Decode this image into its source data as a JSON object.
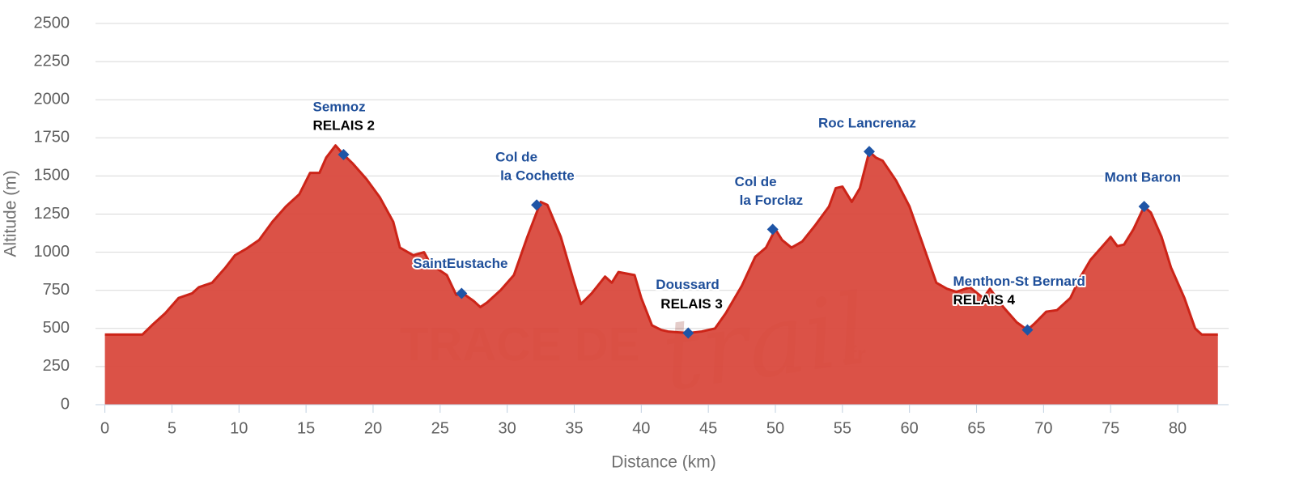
{
  "chart_data": {
    "type": "area",
    "x_label": "Distance (km)",
    "y_label": "Altitude (m)",
    "xlim": [
      -0.7,
      83.8
    ],
    "ylim": [
      0,
      2500
    ],
    "xticks": [
      0,
      5,
      10,
      15,
      20,
      25,
      30,
      35,
      40,
      45,
      50,
      55,
      60,
      65,
      70,
      75,
      80
    ],
    "yticks": [
      0,
      250,
      500,
      750,
      1000,
      1250,
      1500,
      1750,
      2000,
      2250,
      2500
    ],
    "grid": true,
    "color": "#cc2418",
    "fill_color": "#d9493d",
    "watermark": [
      "TRACE DE",
      "trail",
      ".fr"
    ],
    "series": [
      {
        "x": [
          0,
          2.8,
          3.5,
          4.5,
          5.5,
          6.5,
          7,
          8,
          9,
          9.7,
          10.5,
          11.5,
          12.5,
          13.5,
          14.5,
          15.3,
          16,
          16.5,
          17.2,
          17.8,
          18.5,
          19.5,
          20.5,
          21.5,
          22,
          23,
          23.8,
          24.3,
          25.5,
          26.2,
          26.7,
          27.5,
          28,
          28.5,
          29.5,
          30.5,
          31.5,
          32.5,
          33,
          34,
          35,
          35.5,
          36.3,
          37.3,
          37.8,
          38.3,
          39.5,
          40,
          40.8,
          41.5,
          42,
          43.5,
          44.5,
          45.5,
          46.3,
          47.5,
          48.5,
          49.3,
          50,
          50.5,
          51.2,
          52,
          53,
          54,
          54.5,
          55,
          55.7,
          56.3,
          57,
          57.5,
          58,
          59,
          60,
          61,
          62,
          62.8,
          63.5,
          64.5,
          65.5,
          66,
          67,
          68,
          68.8,
          69.3,
          70.2,
          71,
          72,
          72.7,
          73.5,
          74.3,
          75,
          75.5,
          76,
          76.7,
          77.5,
          78,
          78.8,
          79.5,
          80.5,
          81.3,
          81.8,
          83
        ],
        "values": [
          460,
          460,
          520,
          600,
          700,
          730,
          770,
          800,
          900,
          980,
          1020,
          1080,
          1200,
          1300,
          1380,
          1520,
          1520,
          1620,
          1700,
          1640,
          1580,
          1480,
          1360,
          1200,
          1030,
          980,
          1000,
          920,
          850,
          720,
          730,
          680,
          640,
          670,
          750,
          850,
          1100,
          1330,
          1310,
          1100,
          800,
          660,
          730,
          840,
          800,
          870,
          850,
          700,
          520,
          490,
          480,
          470,
          480,
          500,
          600,
          780,
          970,
          1030,
          1150,
          1080,
          1030,
          1070,
          1180,
          1300,
          1420,
          1430,
          1330,
          1420,
          1660,
          1620,
          1600,
          1470,
          1300,
          1050,
          800,
          760,
          740,
          770,
          700,
          760,
          640,
          540,
          490,
          530,
          610,
          620,
          700,
          830,
          950,
          1030,
          1100,
          1040,
          1050,
          1150,
          1300,
          1260,
          1100,
          900,
          700,
          500,
          460,
          460
        ]
      }
    ],
    "waypoints": [
      {
        "label": [
          "Semnoz"
        ],
        "relay": "RELAIS 2",
        "distance": 17.8,
        "altitude": 1640
      },
      {
        "label": [
          "SaintEustache"
        ],
        "distance": 26.6,
        "altitude": 730
      },
      {
        "label": [
          "Col de",
          "la Cochette"
        ],
        "distance": 32.2,
        "altitude": 1310
      },
      {
        "label": [
          "Doussard"
        ],
        "relay": "RELAIS 3",
        "distance": 43.5,
        "altitude": 470
      },
      {
        "label": [
          "Col de",
          "la Forclaz"
        ],
        "distance": 49.8,
        "altitude": 1150
      },
      {
        "label": [
          "Roc Lancrenaz"
        ],
        "distance": 57,
        "altitude": 1660
      },
      {
        "label": [
          "Menthon-St Bernard"
        ],
        "relay": "RELAIS 4",
        "distance": 68.8,
        "altitude": 490
      },
      {
        "label": [
          "Mont Baron"
        ],
        "distance": 77.5,
        "altitude": 1300
      }
    ]
  }
}
